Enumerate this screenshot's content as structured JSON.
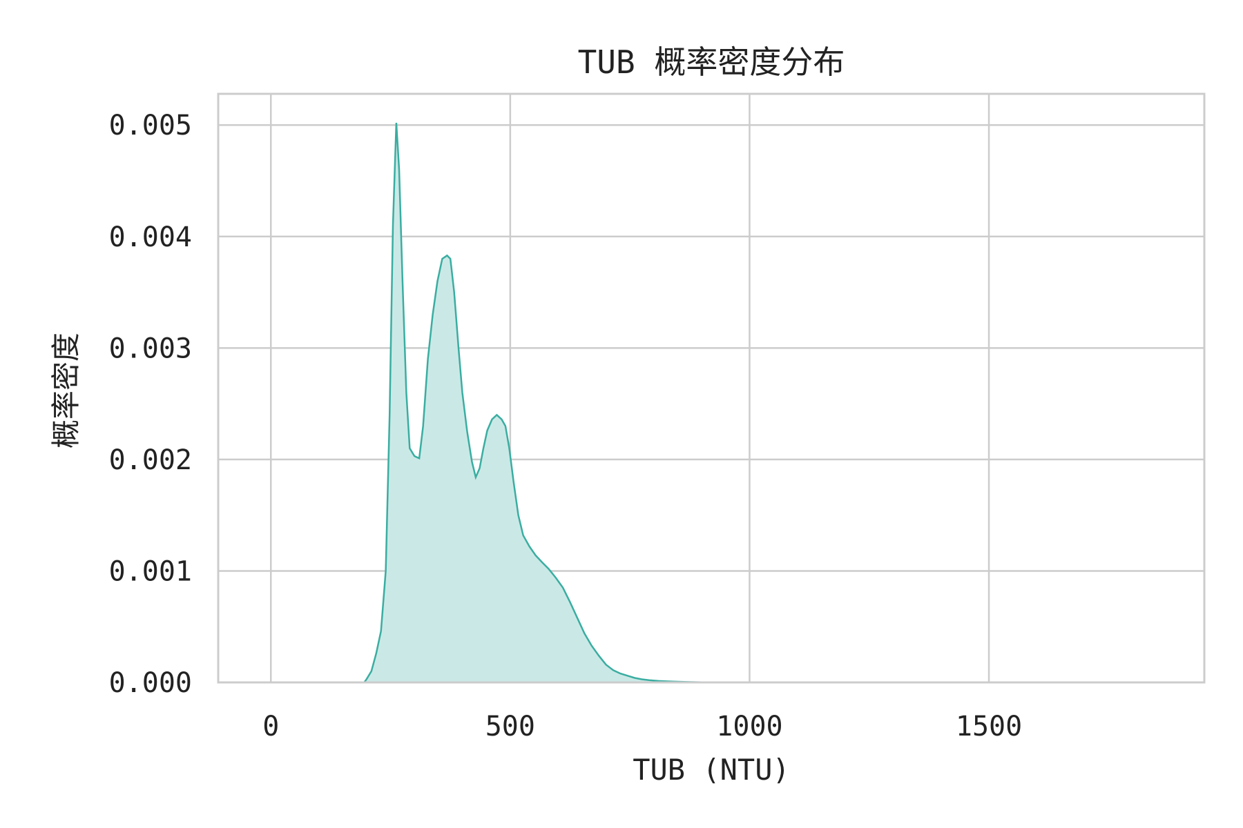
{
  "chart_data": {
    "type": "area",
    "title": "TUB 概率密度分布",
    "xlabel": "TUB (NTU)",
    "ylabel": "概率密度",
    "xlim": [
      -110,
      1950
    ],
    "ylim": [
      0,
      0.00528
    ],
    "xticks": [
      0,
      500,
      1000,
      1500
    ],
    "xtick_labels": [
      "0",
      "500",
      "1000",
      "1500"
    ],
    "yticks": [
      0,
      0.001,
      0.002,
      0.003,
      0.004,
      0.005
    ],
    "ytick_labels": [
      "0.000",
      "0.001",
      "0.002",
      "0.003",
      "0.004",
      "0.005"
    ],
    "grid": true,
    "line_color": "#3aada1",
    "fill_color": "#cae9e6",
    "series": [
      {
        "x": [
          195,
          200,
          210,
          220,
          230,
          240,
          248,
          255,
          262,
          268,
          275,
          283,
          290,
          300,
          310,
          318,
          328,
          338,
          348,
          358,
          368,
          375,
          383,
          392,
          400,
          410,
          420,
          428,
          436,
          444,
          452,
          462,
          472,
          482,
          490,
          498,
          507,
          517,
          527,
          540,
          553,
          566,
          580,
          595,
          610,
          625,
          640,
          655,
          670,
          685,
          700,
          715,
          730,
          745,
          760,
          775,
          790,
          810,
          830,
          850,
          870,
          900,
          940,
          1000
        ],
        "y": [
          0,
          3e-05,
          0.0001,
          0.00026,
          0.00046,
          0.001,
          0.0024,
          0.0041,
          0.00502,
          0.0046,
          0.0036,
          0.0026,
          0.0021,
          0.00203,
          0.00201,
          0.0023,
          0.0029,
          0.0033,
          0.0036,
          0.0038,
          0.00383,
          0.0038,
          0.0035,
          0.003,
          0.0026,
          0.00225,
          0.00198,
          0.00184,
          0.00192,
          0.0021,
          0.00226,
          0.00236,
          0.0024,
          0.00236,
          0.0023,
          0.0021,
          0.0018,
          0.0015,
          0.00132,
          0.00122,
          0.00114,
          0.00108,
          0.00102,
          0.00094,
          0.00085,
          0.00072,
          0.00058,
          0.00044,
          0.00033,
          0.00024,
          0.00016,
          0.00011,
          8e-05,
          6e-05,
          4e-05,
          2.8e-05,
          2e-05,
          1.3e-05,
          9e-06,
          6e-06,
          4e-06,
          2e-06,
          1e-06,
          0
        ]
      }
    ]
  }
}
